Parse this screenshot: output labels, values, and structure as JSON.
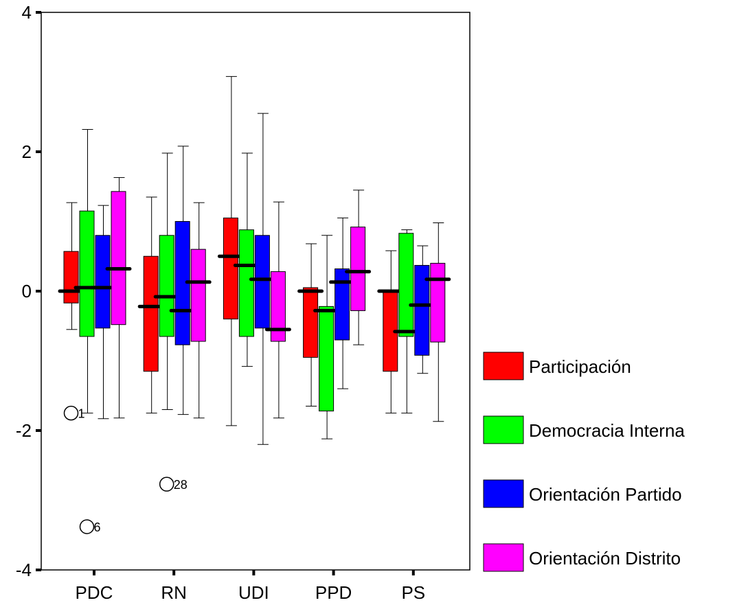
{
  "chart_data": {
    "type": "boxplot",
    "categories": [
      "PDC",
      "RN",
      "UDI",
      "PPD",
      "PS"
    ],
    "ylim": [
      -4,
      4
    ],
    "yticks": [
      -4,
      -2,
      0,
      2,
      4
    ],
    "ytick_labels": [
      "-4",
      "-2",
      "0",
      "2",
      "4"
    ],
    "grid": false,
    "legend_position": "right",
    "series": [
      {
        "name": "Participación",
        "color": "#ff0000",
        "boxes": [
          {
            "min": -0.55,
            "q1": -0.17,
            "median": 0.0,
            "q3": 0.57,
            "max": 1.27
          },
          {
            "min": -1.75,
            "q1": -1.15,
            "median": -0.22,
            "q3": 0.5,
            "max": 1.35
          },
          {
            "min": -1.93,
            "q1": -0.4,
            "median": 0.5,
            "q3": 1.05,
            "max": 3.08
          },
          {
            "min": -1.65,
            "q1": -0.95,
            "median": 0.0,
            "q3": 0.05,
            "max": 0.68
          },
          {
            "min": -1.75,
            "q1": -1.15,
            "median": 0.0,
            "q3": 0.0,
            "max": 0.58
          }
        ]
      },
      {
        "name": "Democracia Interna",
        "color": "#00ff00",
        "boxes": [
          {
            "min": -1.75,
            "q1": -0.65,
            "median": 0.05,
            "q3": 1.15,
            "max": 2.32
          },
          {
            "min": -1.7,
            "q1": -0.65,
            "median": -0.08,
            "q3": 0.8,
            "max": 1.98
          },
          {
            "min": -1.08,
            "q1": -0.65,
            "median": 0.37,
            "q3": 0.88,
            "max": 1.98
          },
          {
            "min": -2.12,
            "q1": -1.72,
            "median": -0.28,
            "q3": -0.22,
            "max": 0.8
          },
          {
            "min": -1.75,
            "q1": -0.65,
            "median": -0.58,
            "q3": 0.83,
            "max": 0.88
          }
        ]
      },
      {
        "name": "Orientación Partido",
        "color": "#0000ff",
        "boxes": [
          {
            "min": -1.83,
            "q1": -0.53,
            "median": 0.05,
            "q3": 0.8,
            "max": 1.23
          },
          {
            "min": -1.77,
            "q1": -0.77,
            "median": -0.28,
            "q3": 1.0,
            "max": 2.08
          },
          {
            "min": -2.2,
            "q1": -0.53,
            "median": 0.17,
            "q3": 0.8,
            "max": 2.55
          },
          {
            "min": -1.4,
            "q1": -0.7,
            "median": 0.13,
            "q3": 0.32,
            "max": 1.05
          },
          {
            "min": -1.18,
            "q1": -0.92,
            "median": -0.2,
            "q3": 0.37,
            "max": 0.65
          }
        ]
      },
      {
        "name": "Orientación Distrito",
        "color": "#ff00ff",
        "boxes": [
          {
            "min": -1.82,
            "q1": -0.48,
            "median": 0.32,
            "q3": 1.43,
            "max": 1.63
          },
          {
            "min": -1.82,
            "q1": -0.72,
            "median": 0.13,
            "q3": 0.6,
            "max": 1.27
          },
          {
            "min": -1.82,
            "q1": -0.72,
            "median": -0.55,
            "q3": 0.28,
            "max": 1.28
          },
          {
            "min": -0.77,
            "q1": -0.28,
            "median": 0.28,
            "q3": 0.92,
            "max": 1.45
          },
          {
            "min": -1.87,
            "q1": -0.73,
            "median": 0.17,
            "q3": 0.4,
            "max": 0.98
          }
        ]
      }
    ],
    "outliers": [
      {
        "category": "PDC",
        "series": "Participación",
        "y": -1.75,
        "label": "1"
      },
      {
        "category": "PDC",
        "series": "Democracia Interna",
        "y": -3.38,
        "label": "6"
      },
      {
        "category": "RN",
        "series": "Democracia Interna",
        "y": -2.77,
        "label": "28"
      }
    ]
  }
}
